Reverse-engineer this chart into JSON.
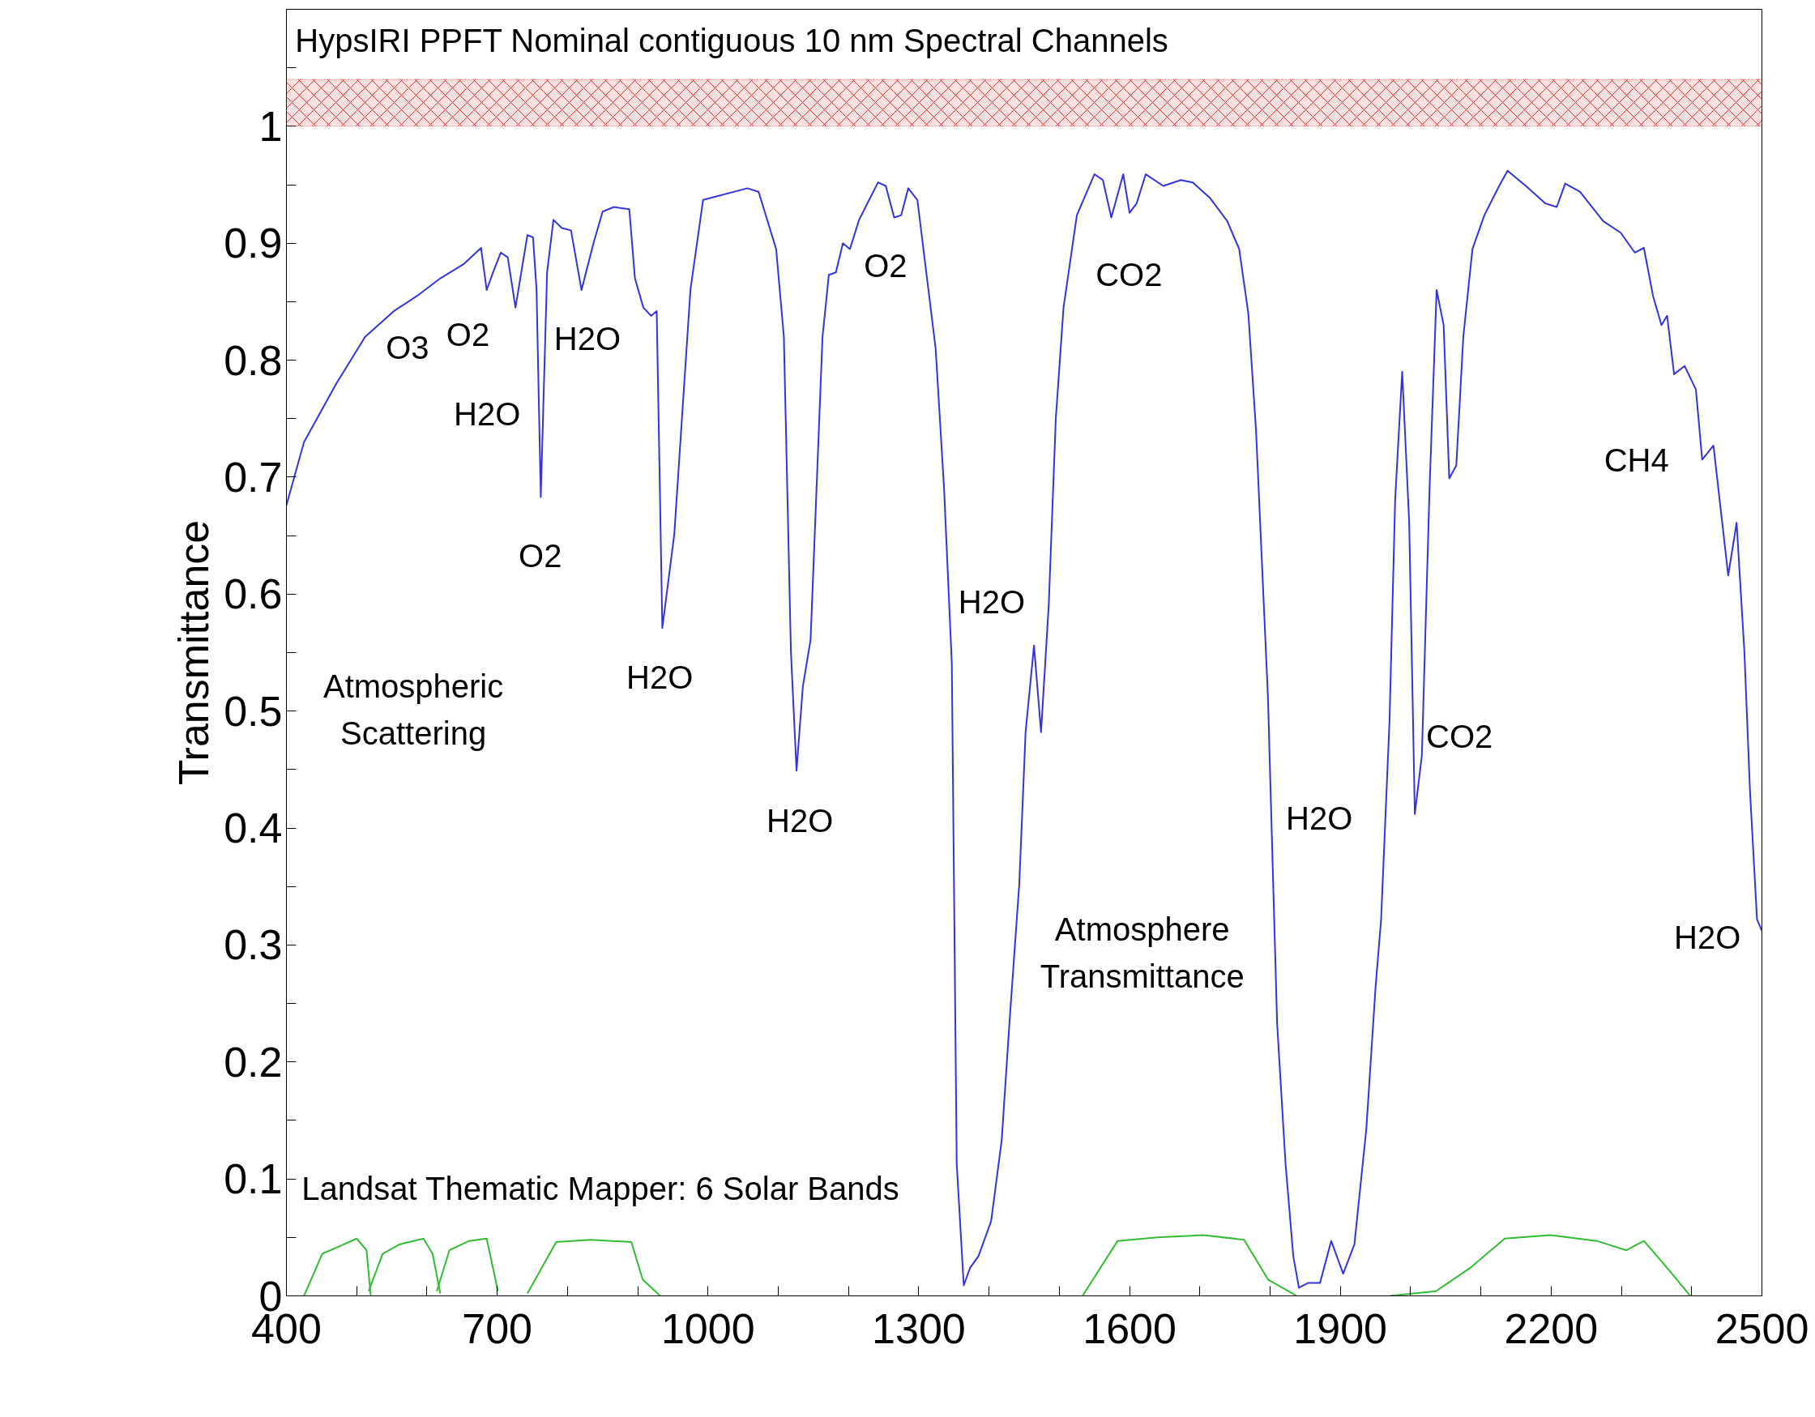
{
  "chart_data": {
    "type": "line",
    "ylabel": "Transmittance",
    "xlim": [
      400,
      2500
    ],
    "ylim": [
      0,
      1.1
    ],
    "xticks": [
      400,
      {
        "value": 500,
        "label": null
      },
      {
        "value": 600,
        "label": null
      },
      700,
      {
        "value": 800,
        "label": null
      },
      {
        "value": 900,
        "label": null
      },
      1000,
      {
        "value": 1100,
        "label": null
      },
      {
        "value": 1200,
        "label": null
      },
      1300,
      {
        "value": 1400,
        "label": null
      },
      {
        "value": 1500,
        "label": null
      },
      1600,
      {
        "value": 1700,
        "label": null
      },
      {
        "value": 1800,
        "label": null
      },
      1900,
      {
        "value": 2000,
        "label": null
      },
      {
        "value": 2100,
        "label": null
      },
      2200,
      {
        "value": 2300,
        "label": null
      },
      {
        "value": 2400,
        "label": null
      },
      2500
    ],
    "yticks": [
      0,
      {
        "value": 0.05,
        "label": null
      },
      0.1,
      {
        "value": 0.15,
        "label": null
      },
      0.2,
      {
        "value": 0.25,
        "label": null
      },
      0.3,
      {
        "value": 0.35,
        "label": null
      },
      0.4,
      {
        "value": 0.45,
        "label": null
      },
      0.5,
      {
        "value": 0.55,
        "label": null
      },
      0.6,
      {
        "value": 0.65,
        "label": null
      },
      0.7,
      {
        "value": 0.75,
        "label": null
      },
      0.8,
      {
        "value": 0.85,
        "label": null
      },
      0.9,
      {
        "value": 0.95,
        "label": null
      },
      1,
      {
        "value": 1.05,
        "label": null
      }
    ],
    "grid": false,
    "marker": "none",
    "line_style": "solid",
    "series": [
      {
        "color": "#3333dd",
        "x": [
          400,
          425,
          471,
          512,
          553,
          586,
          619,
          652,
          677,
          685,
          694,
          705,
          715,
          726,
          743,
          751,
          756,
          762,
          771,
          780,
          792,
          805,
          820,
          837,
          850,
          866,
          888,
          896,
          908,
          919,
          927,
          935,
          952,
          975,
          993,
          1056,
          1072,
          1097,
          1108,
          1118,
          1126,
          1135,
          1146,
          1163,
          1172,
          1182,
          1192,
          1202,
          1215,
          1242,
          1253,
          1265,
          1275,
          1285,
          1298,
          1324,
          1336,
          1347,
          1354,
          1364,
          1373,
          1385,
          1403,
          1418,
          1429,
          1443,
          1452,
          1464,
          1474,
          1485,
          1495,
          1506,
          1525,
          1550,
          1562,
          1574,
          1591,
          1600,
          1610,
          1623,
          1648,
          1673,
          1690,
          1714,
          1739,
          1756,
          1769,
          1780,
          1797,
          1810,
          1822,
          1833,
          1841,
          1854,
          1871,
          1887,
          1904,
          1920,
          1937,
          1950,
          1958,
          1970,
          1978,
          1988,
          1998,
          2006,
          2016,
          2027,
          2037,
          2047,
          2055,
          2065,
          2075,
          2088,
          2105,
          2126,
          2138,
          2164,
          2192,
          2208,
          2220,
          2241,
          2274,
          2299,
          2319,
          2332,
          2345,
          2357,
          2365,
          2375,
          2390,
          2406,
          2415,
          2431,
          2452,
          2464,
          2475,
          2483,
          2493,
          2500
        ],
        "values": [
          0.676,
          0.73,
          0.78,
          0.82,
          0.842,
          0.855,
          0.87,
          0.882,
          0.896,
          0.86,
          0.875,
          0.892,
          0.888,
          0.845,
          0.907,
          0.905,
          0.86,
          0.683,
          0.875,
          0.92,
          0.913,
          0.911,
          0.86,
          0.9,
          0.927,
          0.931,
          0.929,
          0.87,
          0.845,
          0.838,
          0.842,
          0.571,
          0.651,
          0.86,
          0.937,
          0.947,
          0.944,
          0.895,
          0.82,
          0.551,
          0.449,
          0.521,
          0.561,
          0.82,
          0.873,
          0.875,
          0.9,
          0.895,
          0.92,
          0.952,
          0.949,
          0.922,
          0.924,
          0.947,
          0.937,
          0.81,
          0.69,
          0.541,
          0.113,
          0.009,
          0.024,
          0.034,
          0.064,
          0.133,
          0.233,
          0.352,
          0.482,
          0.556,
          0.482,
          0.591,
          0.75,
          0.845,
          0.924,
          0.959,
          0.954,
          0.922,
          0.959,
          0.926,
          0.934,
          0.959,
          0.949,
          0.954,
          0.952,
          0.939,
          0.919,
          0.895,
          0.84,
          0.74,
          0.511,
          0.233,
          0.113,
          0.034,
          0.007,
          0.011,
          0.011,
          0.047,
          0.019,
          0.044,
          0.143,
          0.263,
          0.322,
          0.492,
          0.681,
          0.79,
          0.661,
          0.412,
          0.462,
          0.691,
          0.86,
          0.83,
          0.699,
          0.71,
          0.82,
          0.895,
          0.924,
          0.949,
          0.962,
          0.949,
          0.934,
          0.931,
          0.951,
          0.944,
          0.919,
          0.909,
          0.892,
          0.896,
          0.855,
          0.83,
          0.838,
          0.788,
          0.795,
          0.775,
          0.715,
          0.727,
          0.616,
          0.661,
          0.551,
          0.432,
          0.322,
          0.312
        ]
      },
      {
        "color": "#33bb33",
        "x": [
          425,
          451,
          474,
          500,
          514,
          520
        ],
        "values": [
          0,
          0.036,
          0.042,
          0.049,
          0.039,
          0
        ]
      },
      {
        "color": "#33bb33",
        "x": [
          517,
          537,
          561,
          595,
          608,
          619
        ],
        "values": [
          0.004,
          0.036,
          0.044,
          0.049,
          0.036,
          0.002
        ]
      },
      {
        "color": "#33bb33",
        "x": [
          614,
          632,
          660,
          685,
          701
        ],
        "values": [
          0.004,
          0.039,
          0.047,
          0.049,
          0.004
        ]
      },
      {
        "color": "#33bb33",
        "x": [
          743,
          784,
          833,
          891,
          907,
          932
        ],
        "values": [
          0.002,
          0.046,
          0.048,
          0.046,
          0.014,
          0
        ]
      },
      {
        "color": "#33bb33",
        "x": [
          1533,
          1583,
          1640,
          1705,
          1763,
          1797,
          1838
        ],
        "values": [
          0,
          0.047,
          0.05,
          0.052,
          0.048,
          0.014,
          0
        ]
      },
      {
        "color": "#33bb33",
        "x": [
          1970,
          2036,
          2085,
          2134,
          2199,
          2265,
          2307,
          2332,
          2365,
          2398
        ],
        "values": [
          0,
          0.004,
          0.024,
          0.049,
          0.052,
          0.047,
          0.039,
          0.047,
          0.024,
          0
        ]
      }
    ],
    "bands": [
      {
        "axis": "y",
        "from": 1,
        "to": 1.04,
        "color": "#e03030"
      }
    ],
    "annotations": [
      "HypsIRI PPFT Nominal contiguous 10 nm Spectral Channels",
      "O3",
      "O2",
      "H2O",
      "O2",
      "H2O",
      "H2O",
      "O2",
      "H2O",
      "H2O",
      "CO2",
      "H2O",
      "CO2",
      "CH4",
      "H2O",
      "Atmospheric\nScattering",
      "Atmosphere\nTransmittance",
      "Landsat Thematic Mapper: 6 Solar Bands"
    ]
  }
}
